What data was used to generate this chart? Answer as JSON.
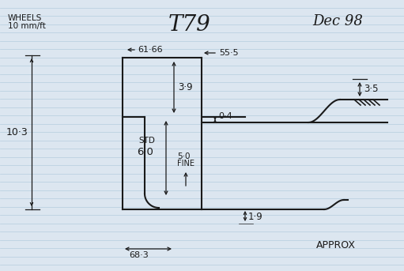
{
  "title": "T79",
  "subtitle_left": "WHEELS\n10 mm/ft",
  "subtitle_right": "Dec 98",
  "bg_color": "#dce6f0",
  "line_color": "#1a1a1a",
  "text_color": "#1a1a1a",
  "ruled_color": "#b8cfe0",
  "annotations": {
    "61_66": "61·66",
    "55_5": "55·5",
    "3_9": "3·9",
    "0_4": "0·4",
    "3_5": "3·5",
    "10_3": "10·3",
    "std": "STD",
    "6_0": "6·0",
    "5_0": "5·0",
    "fine": "FINE",
    "1_9": "1·9",
    "68_3": "68·3",
    "approx": "APPROX"
  }
}
